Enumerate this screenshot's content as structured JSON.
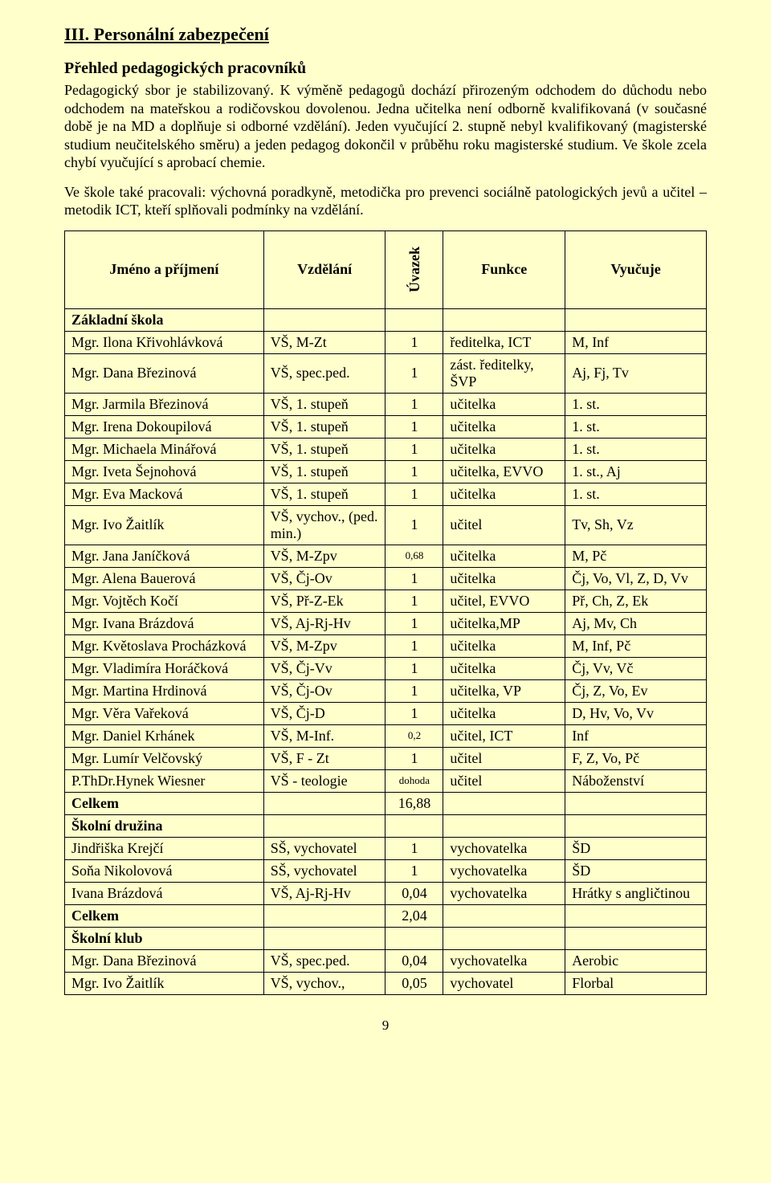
{
  "colors": {
    "page_bg": "#ffffcc",
    "text": "#000000",
    "border": "#000000"
  },
  "typography": {
    "body_family": "Times New Roman",
    "body_size_pt": 14,
    "title_size_pt": 16,
    "subheading_size_pt": 15
  },
  "section_title": "III.  Personální zabezpečení",
  "subheading": "Přehled  pedagogických pracovníků",
  "paragraph1": "Pedagogický sbor je stabilizovaný. K výměně pedagogů dochází přirozeným odchodem do důchodu nebo odchodem na mateřskou a rodičovskou dovolenou. Jedna učitelka není odborně kvalifikovaná (v současné době je na MD a doplňuje si odborné vzdělání). Jeden vyučující 2. stupně nebyl kvalifikovaný (magisterské studium neučitelského směru) a jeden pedagog dokončil v průběhu roku magisterské studium. Ve škole zcela chybí vyučující s aprobací chemie.",
  "paragraph2": "Ve škole také pracovali: výchovná poradkyně, metodička pro prevenci sociálně patologických jevů a učitel – metodik ICT, kteří splňovali podmínky na vzdělání.",
  "table": {
    "columns": [
      {
        "key": "name",
        "label": "Jméno a příjmení",
        "align": "center",
        "width_pct": 31
      },
      {
        "key": "edu",
        "label": "Vzdělání",
        "align": "center",
        "width_pct": 19
      },
      {
        "key": "uv",
        "label": "Úvazek",
        "align": "center",
        "width_pct": 9,
        "vertical": true
      },
      {
        "key": "func",
        "label": "Funkce",
        "align": "center",
        "width_pct": 19
      },
      {
        "key": "teach",
        "label": "Vyučuje",
        "align": "center",
        "width_pct": 22
      }
    ],
    "rows": [
      {
        "section": true,
        "name": "Základní škola"
      },
      {
        "name": "Mgr. Ilona Křivohlávková",
        "edu": "VŠ, M-Zt",
        "uv": "1",
        "func": "ředitelka, ICT",
        "teach": "M, Inf"
      },
      {
        "name": "Mgr. Dana Březinová",
        "edu": "VŠ, spec.ped.",
        "uv": "1",
        "func": "zást. ředitelky, ŠVP",
        "teach": "Aj, Fj, Tv"
      },
      {
        "name": "Mgr. Jarmila Březinová",
        "edu": "VŠ, 1. stupeň",
        "uv": "1",
        "func": "učitelka",
        "teach": "1. st."
      },
      {
        "name": "Mgr. Irena Dokoupilová",
        "edu": "VŠ, 1. stupeň",
        "uv": "1",
        "func": "učitelka",
        "teach": "1. st."
      },
      {
        "name": "Mgr. Michaela Minářová",
        "edu": "VŠ, 1. stupeň",
        "uv": "1",
        "func": "učitelka",
        "teach": "1. st."
      },
      {
        "name": "Mgr. Iveta Šejnohová",
        "edu": "VŠ, 1. stupeň",
        "uv": "1",
        "func": "učitelka, EVVO",
        "teach": "1. st., Aj"
      },
      {
        "name": "Mgr. Eva Macková",
        "edu": "VŠ, 1. stupeň",
        "uv": "1",
        "func": "učitelka",
        "teach": "1. st."
      },
      {
        "name": "Mgr. Ivo Žaitlík",
        "edu": "VŠ, vychov., (ped. min.)",
        "uv": "1",
        "func": "učitel",
        "teach": "Tv, Sh, Vz"
      },
      {
        "name": "Mgr. Jana Janíčková",
        "edu": "VŠ, M-Zpv",
        "uv": "0,68",
        "uv_small": true,
        "func": "učitelka",
        "teach": "M, Pč"
      },
      {
        "name": "Mgr. Alena Bauerová",
        "edu": "VŠ, Čj-Ov",
        "uv": "1",
        "func": "učitelka",
        "teach": "Čj, Vo, Vl, Z, D, Vv"
      },
      {
        "name": "Mgr. Vojtěch Kočí",
        "edu": "VŠ, Př-Z-Ek",
        "uv": "1",
        "func": "učitel, EVVO",
        "teach": "Př, Ch, Z, Ek"
      },
      {
        "name": "Mgr. Ivana Brázdová",
        "edu": "VŠ, Aj-Rj-Hv",
        "uv": "1",
        "func": "učitelka,MP",
        "teach": "Aj, Mv, Ch"
      },
      {
        "name": "Mgr. Květoslava Procházková",
        "edu": "VŠ, M-Zpv",
        "uv": "1",
        "func": "učitelka",
        "teach": "M, Inf, Pč"
      },
      {
        "name": "Mgr. Vladimíra Horáčková",
        "edu": "VŠ, Čj-Vv",
        "uv": "1",
        "func": "učitelka",
        "teach": "Čj, Vv, Vč"
      },
      {
        "name": "Mgr. Martina Hrdinová",
        "edu": "VŠ, Čj-Ov",
        "uv": "1",
        "func": "učitelka, VP",
        "teach": "Čj, Z, Vo, Ev"
      },
      {
        "name": "Mgr. Věra Vařeková",
        "edu": "VŠ, Čj-D",
        "uv": "1",
        "func": "učitelka",
        "teach": "D, Hv, Vo, Vv"
      },
      {
        "name": "Mgr. Daniel Krhánek",
        "edu": "VŠ, M-Inf.",
        "uv": "0,2",
        "uv_small": true,
        "func": "učitel, ICT",
        "teach": "Inf"
      },
      {
        "name": "Mgr. Lumír Velčovský",
        "edu": "VŠ, F - Zt",
        "uv": "1",
        "func": "učitel",
        "teach": "F, Z, Vo, Pč"
      },
      {
        "name": "P.ThDr.Hynek Wiesner",
        "edu": "VŠ - teologie",
        "uv": "dohoda",
        "uv_small": true,
        "func": "učitel",
        "teach": "Náboženství"
      },
      {
        "section": true,
        "name": "Celkem",
        "uv": "16,88"
      },
      {
        "section": true,
        "name": "Školní družina"
      },
      {
        "name": "Jindřiška Krejčí",
        "edu": "SŠ, vychovatel",
        "uv": "1",
        "func": "vychovatelka",
        "teach": "ŠD"
      },
      {
        "name": "Soňa Nikolovová",
        "edu": "SŠ, vychovatel",
        "uv": "1",
        "func": "vychovatelka",
        "teach": "ŠD"
      },
      {
        "name": "Ivana Brázdová",
        "edu": "VŠ, Aj-Rj-Hv",
        "uv": "0,04",
        "func": "vychovatelka",
        "teach": "Hrátky s angličtinou"
      },
      {
        "section": true,
        "name": "Celkem",
        "uv": "2,04"
      },
      {
        "section": true,
        "name": "Školní klub"
      },
      {
        "name": "Mgr. Dana Březinová",
        "edu": "VŠ, spec.ped.",
        "uv": "0,04",
        "func": "vychovatelka",
        "teach": "Aerobic"
      },
      {
        "name": "Mgr. Ivo Žaitlík",
        "edu": "VŠ, vychov.,",
        "uv": "0,05",
        "func": "vychovatel",
        "teach": "Florbal"
      }
    ]
  },
  "page_number": "9"
}
